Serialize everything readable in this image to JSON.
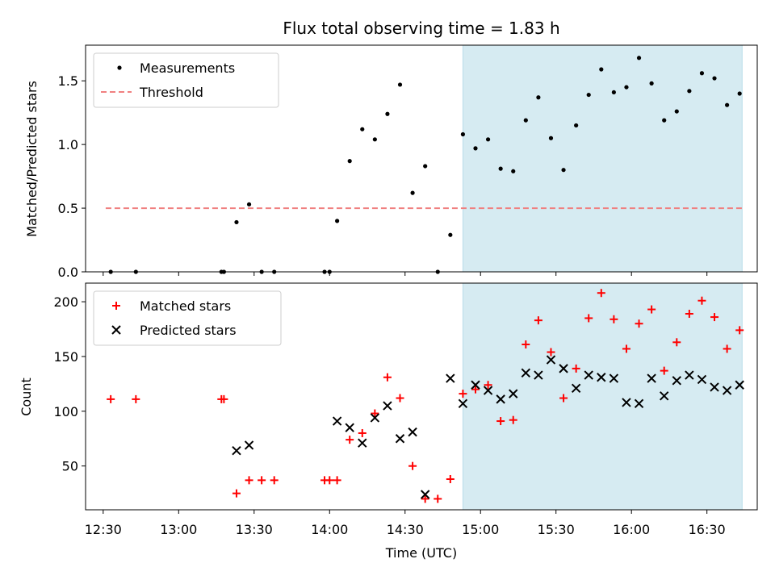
{
  "chart_data": {
    "title": "Flux total observing time = 1.83 h",
    "xlabel": "Time (UTC)",
    "x_ticks": [
      "12:30",
      "13:00",
      "13:30",
      "14:00",
      "14:30",
      "15:00",
      "15:30",
      "16:00",
      "16:30"
    ],
    "xlim": [
      "12:23",
      "16:50"
    ],
    "shaded_region": {
      "start": "14:53",
      "end": "16:44",
      "color": "#add8e6"
    },
    "panels": [
      {
        "type": "scatter",
        "ylabel": "Matched/Predicted stars",
        "ylim": [
          0,
          1.78
        ],
        "y_ticks": [
          "0.0",
          "0.5",
          "1.0",
          "1.5"
        ],
        "legend": {
          "position": "upper-left"
        },
        "series": [
          {
            "name": "Measurements",
            "color": "#000000",
            "marker": "dot",
            "points": [
              [
                "12:33",
                0.0
              ],
              [
                "12:43",
                0.0
              ],
              [
                "13:17",
                0.0
              ],
              [
                "13:18",
                0.0
              ],
              [
                "13:23",
                0.39
              ],
              [
                "13:28",
                0.53
              ],
              [
                "13:33",
                0.0
              ],
              [
                "13:38",
                0.0
              ],
              [
                "13:58",
                0.0
              ],
              [
                "14:00",
                0.0
              ],
              [
                "14:03",
                0.4
              ],
              [
                "14:08",
                0.87
              ],
              [
                "14:13",
                1.12
              ],
              [
                "14:18",
                1.04
              ],
              [
                "14:23",
                1.24
              ],
              [
                "14:28",
                1.47
              ],
              [
                "14:33",
                0.62
              ],
              [
                "14:38",
                0.83
              ],
              [
                "14:43",
                0.0
              ],
              [
                "14:48",
                0.29
              ],
              [
                "14:53",
                1.08
              ],
              [
                "14:58",
                0.97
              ],
              [
                "15:03",
                1.04
              ],
              [
                "15:08",
                0.81
              ],
              [
                "15:13",
                0.79
              ],
              [
                "15:18",
                1.19
              ],
              [
                "15:23",
                1.37
              ],
              [
                "15:28",
                1.05
              ],
              [
                "15:33",
                0.8
              ],
              [
                "15:38",
                1.15
              ],
              [
                "15:43",
                1.39
              ],
              [
                "15:48",
                1.59
              ],
              [
                "15:53",
                1.41
              ],
              [
                "15:58",
                1.45
              ],
              [
                "16:03",
                1.68
              ],
              [
                "16:08",
                1.48
              ],
              [
                "16:13",
                1.19
              ],
              [
                "16:18",
                1.26
              ],
              [
                "16:23",
                1.42
              ],
              [
                "16:28",
                1.56
              ],
              [
                "16:33",
                1.52
              ],
              [
                "16:38",
                1.31
              ],
              [
                "16:43",
                1.4
              ]
            ]
          },
          {
            "name": "Threshold",
            "color": "#f08080",
            "style": "dashed",
            "points": [
              [
                "12:31",
                0.5
              ],
              [
                "16:44",
                0.5
              ]
            ]
          }
        ]
      },
      {
        "type": "scatter",
        "ylabel": "Count",
        "ylim": [
          10,
          217
        ],
        "y_ticks": [
          "50",
          "100",
          "150",
          "200"
        ],
        "legend": {
          "position": "upper-left"
        },
        "series": [
          {
            "name": "Matched stars",
            "color": "#ff0000",
            "marker": "plus",
            "points": [
              [
                "12:33",
                111
              ],
              [
                "12:43",
                111
              ],
              [
                "13:17",
                111
              ],
              [
                "13:18",
                111
              ],
              [
                "13:23",
                25
              ],
              [
                "13:28",
                37
              ],
              [
                "13:33",
                37
              ],
              [
                "13:38",
                37
              ],
              [
                "13:58",
                37
              ],
              [
                "14:00",
                37
              ],
              [
                "14:03",
                37
              ],
              [
                "14:08",
                74
              ],
              [
                "14:13",
                80
              ],
              [
                "14:18",
                98
              ],
              [
                "14:23",
                131
              ],
              [
                "14:28",
                112
              ],
              [
                "14:33",
                50
              ],
              [
                "14:38",
                20
              ],
              [
                "14:43",
                20
              ],
              [
                "14:48",
                38
              ],
              [
                "14:53",
                116
              ],
              [
                "14:58",
                120
              ],
              [
                "15:03",
                124
              ],
              [
                "15:08",
                91
              ],
              [
                "15:13",
                92
              ],
              [
                "15:18",
                161
              ],
              [
                "15:23",
                183
              ],
              [
                "15:28",
                154
              ],
              [
                "15:33",
                112
              ],
              [
                "15:38",
                139
              ],
              [
                "15:43",
                185
              ],
              [
                "15:48",
                208
              ],
              [
                "15:53",
                184
              ],
              [
                "15:58",
                157
              ],
              [
                "16:03",
                180
              ],
              [
                "16:08",
                193
              ],
              [
                "16:13",
                137
              ],
              [
                "16:18",
                163
              ],
              [
                "16:23",
                189
              ],
              [
                "16:28",
                201
              ],
              [
                "16:33",
                186
              ],
              [
                "16:38",
                157
              ],
              [
                "16:43",
                174
              ]
            ]
          },
          {
            "name": "Predicted stars",
            "color": "#000000",
            "marker": "x",
            "points": [
              [
                "13:23",
                64
              ],
              [
                "13:28",
                69
              ],
              [
                "14:03",
                91
              ],
              [
                "14:08",
                85
              ],
              [
                "14:13",
                71
              ],
              [
                "14:18",
                94
              ],
              [
                "14:23",
                105
              ],
              [
                "14:28",
                75
              ],
              [
                "14:33",
                81
              ],
              [
                "14:38",
                24
              ],
              [
                "14:48",
                130
              ],
              [
                "14:53",
                107
              ],
              [
                "14:58",
                124
              ],
              [
                "15:03",
                119
              ],
              [
                "15:08",
                111
              ],
              [
                "15:13",
                116
              ],
              [
                "15:18",
                135
              ],
              [
                "15:23",
                133
              ],
              [
                "15:28",
                147
              ],
              [
                "15:33",
                139
              ],
              [
                "15:38",
                121
              ],
              [
                "15:43",
                133
              ],
              [
                "15:48",
                131
              ],
              [
                "15:53",
                130
              ],
              [
                "15:58",
                108
              ],
              [
                "16:03",
                107
              ],
              [
                "16:08",
                130
              ],
              [
                "16:13",
                114
              ],
              [
                "16:18",
                128
              ],
              [
                "16:23",
                133
              ],
              [
                "16:28",
                129
              ],
              [
                "16:33",
                122
              ],
              [
                "16:38",
                119
              ],
              [
                "16:43",
                124
              ]
            ]
          }
        ]
      }
    ]
  }
}
